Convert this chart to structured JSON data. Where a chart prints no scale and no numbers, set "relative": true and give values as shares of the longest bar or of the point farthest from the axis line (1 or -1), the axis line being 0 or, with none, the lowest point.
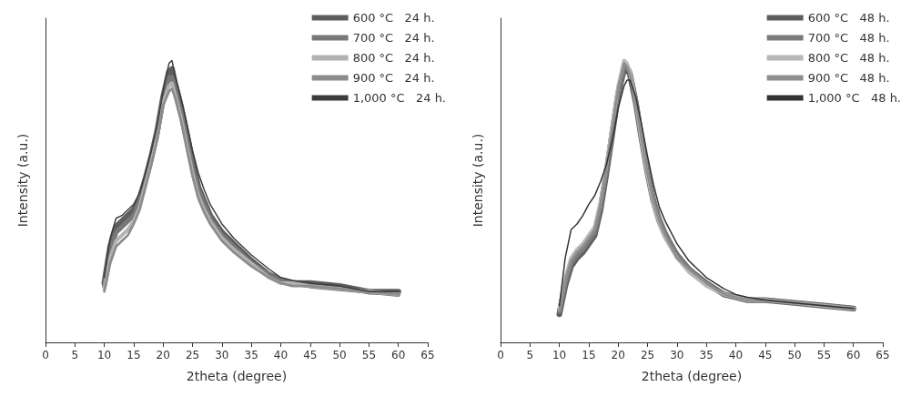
{
  "chart_data": [
    {
      "type": "line",
      "relative": true,
      "xlabel": "2theta (degree)",
      "ylabel": "Intensity (a.u.)",
      "xlim": [
        0,
        65
      ],
      "xticks": [
        0,
        5,
        10,
        15,
        20,
        25,
        30,
        35,
        40,
        45,
        50,
        55,
        60,
        65
      ],
      "legend": "top right",
      "grid": false,
      "marker": "none",
      "line_style": "solid",
      "tick_labels": "x",
      "x": [
        10,
        11,
        12,
        13,
        14,
        15,
        16,
        17,
        18,
        19,
        20,
        21,
        21.5,
        22,
        23,
        24,
        25,
        26,
        27,
        28,
        30,
        32,
        35,
        38,
        40,
        42,
        45,
        50,
        55,
        60
      ],
      "series": [
        {
          "name": "600 °C   24 h.",
          "color": "#5e5e5e",
          "values": [
            0.21,
            0.34,
            0.41,
            0.43,
            0.45,
            0.47,
            0.51,
            0.58,
            0.66,
            0.75,
            0.87,
            0.96,
            0.97,
            0.92,
            0.84,
            0.74,
            0.64,
            0.55,
            0.5,
            0.45,
            0.39,
            0.35,
            0.29,
            0.24,
            0.22,
            0.21,
            0.21,
            0.2,
            0.18,
            0.18
          ]
        },
        {
          "name": "700 °C   24 h.",
          "color": "#787878",
          "values": [
            0.2,
            0.32,
            0.39,
            0.41,
            0.43,
            0.45,
            0.5,
            0.57,
            0.65,
            0.74,
            0.86,
            0.94,
            0.94,
            0.9,
            0.82,
            0.72,
            0.62,
            0.54,
            0.49,
            0.44,
            0.38,
            0.34,
            0.28,
            0.24,
            0.22,
            0.21,
            0.2,
            0.19,
            0.18,
            0.17
          ]
        },
        {
          "name": "800 °C   24 h.",
          "color": "#b2b2b2",
          "values": [
            0.19,
            0.3,
            0.36,
            0.38,
            0.4,
            0.43,
            0.48,
            0.56,
            0.64,
            0.73,
            0.85,
            0.91,
            0.92,
            0.88,
            0.8,
            0.7,
            0.6,
            0.52,
            0.47,
            0.43,
            0.37,
            0.33,
            0.28,
            0.23,
            0.21,
            0.21,
            0.2,
            0.19,
            0.18,
            0.17
          ]
        },
        {
          "name": "900 °C   24 h.",
          "color": "#8c8c8c",
          "values": [
            0.18,
            0.28,
            0.34,
            0.36,
            0.38,
            0.42,
            0.47,
            0.55,
            0.63,
            0.72,
            0.84,
            0.89,
            0.9,
            0.87,
            0.79,
            0.69,
            0.59,
            0.51,
            0.46,
            0.42,
            0.36,
            0.32,
            0.27,
            0.23,
            0.21,
            0.2,
            0.2,
            0.19,
            0.18,
            0.17
          ]
        },
        {
          "name": "1,000 °C   24 h.",
          "color": "#3c3c3c",
          "values": [
            0.23,
            0.37,
            0.44,
            0.45,
            0.47,
            0.49,
            0.53,
            0.6,
            0.68,
            0.77,
            0.89,
            0.99,
            1,
            0.95,
            0.87,
            0.78,
            0.68,
            0.6,
            0.54,
            0.49,
            0.42,
            0.37,
            0.31,
            0.26,
            0.23,
            0.22,
            0.21,
            0.2,
            0.18,
            0.18
          ]
        }
      ]
    },
    {
      "type": "line",
      "relative": true,
      "xlabel": "2theta (degree)",
      "ylabel": "Intensity (a.u.)",
      "xlim": [
        0,
        65
      ],
      "xticks": [
        0,
        5,
        10,
        15,
        20,
        25,
        30,
        35,
        40,
        45,
        50,
        55,
        60,
        65
      ],
      "legend": "top right",
      "grid": false,
      "marker": "none",
      "line_style": "solid",
      "tick_labels": "x",
      "x": [
        10,
        11,
        12,
        13,
        14,
        15,
        16,
        17,
        18,
        19,
        20,
        21,
        21.5,
        22,
        23,
        24,
        25,
        26,
        27,
        28,
        30,
        32,
        35,
        38,
        40,
        42,
        45,
        50,
        55,
        60
      ],
      "series": [
        {
          "name": "600 °C   48 h.",
          "color": "#5e5e5e",
          "values": [
            0.1,
            0.2,
            0.27,
            0.3,
            0.32,
            0.35,
            0.38,
            0.47,
            0.6,
            0.74,
            0.88,
            0.97,
            0.97,
            0.95,
            0.85,
            0.72,
            0.6,
            0.5,
            0.43,
            0.38,
            0.31,
            0.26,
            0.21,
            0.17,
            0.16,
            0.15,
            0.15,
            0.14,
            0.13,
            0.12
          ]
        },
        {
          "name": "700 °C   48 h.",
          "color": "#7a7a7a",
          "values": [
            0.11,
            0.21,
            0.28,
            0.31,
            0.33,
            0.36,
            0.39,
            0.48,
            0.61,
            0.75,
            0.89,
            0.98,
            0.98,
            0.96,
            0.86,
            0.73,
            0.61,
            0.51,
            0.44,
            0.39,
            0.31,
            0.26,
            0.21,
            0.17,
            0.16,
            0.15,
            0.15,
            0.14,
            0.13,
            0.12
          ]
        },
        {
          "name": "800 °C   48 h.",
          "color": "#b8b8b8",
          "values": [
            0.12,
            0.23,
            0.3,
            0.33,
            0.35,
            0.38,
            0.41,
            0.5,
            0.63,
            0.77,
            0.91,
            1,
            0.99,
            0.96,
            0.85,
            0.71,
            0.59,
            0.49,
            0.42,
            0.37,
            0.3,
            0.25,
            0.2,
            0.17,
            0.16,
            0.15,
            0.15,
            0.14,
            0.13,
            0.12
          ]
        },
        {
          "name": "900 °C   48 h.",
          "color": "#8e8e8e",
          "values": [
            0.11,
            0.22,
            0.29,
            0.32,
            0.34,
            0.37,
            0.4,
            0.49,
            0.62,
            0.76,
            0.9,
            0.99,
            0.98,
            0.95,
            0.85,
            0.72,
            0.6,
            0.5,
            0.43,
            0.38,
            0.3,
            0.26,
            0.21,
            0.17,
            0.16,
            0.15,
            0.15,
            0.14,
            0.13,
            0.12
          ]
        },
        {
          "name": "1,000 °C   48 h.",
          "color": "#333333",
          "values": [
            0.13,
            0.3,
            0.4,
            0.42,
            0.45,
            0.49,
            0.52,
            0.57,
            0.63,
            0.72,
            0.83,
            0.91,
            0.93,
            0.93,
            0.87,
            0.77,
            0.66,
            0.56,
            0.48,
            0.43,
            0.35,
            0.29,
            0.23,
            0.19,
            0.17,
            0.16,
            0.15,
            0.14,
            0.13,
            0.12
          ]
        }
      ]
    }
  ]
}
